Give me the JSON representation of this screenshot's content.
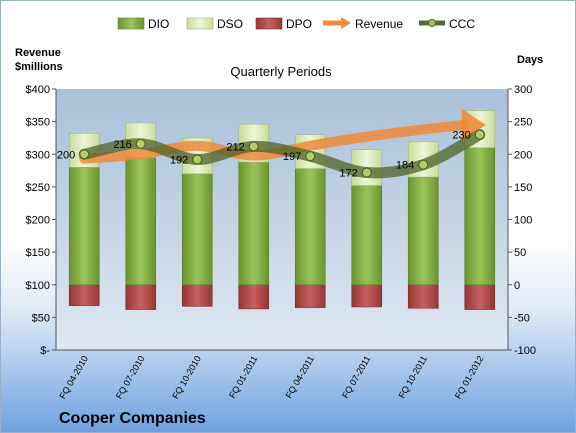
{
  "chart_data": {
    "type": "bar",
    "subtitle": "Quarterly Periods",
    "company": "Cooper Companies",
    "y_left_title_lines": [
      "Revenue",
      "$millions"
    ],
    "y_right_title": "Days",
    "categories": [
      "FQ 04-2010",
      "FQ 07-2010",
      "FQ 10-2010",
      "FQ 01-2011",
      "FQ 04-2011",
      "FQ 07-2011",
      "FQ 10-2011",
      "FQ 01-2012"
    ],
    "y_left_ticks": [
      "$400",
      "$350",
      "$300",
      "$250",
      "$200",
      "$150",
      "$100",
      "$50",
      "$-"
    ],
    "y_left_range": [
      0,
      400
    ],
    "y_right_ticks": [
      "300",
      "250",
      "200",
      "150",
      "100",
      "50",
      "0",
      "-50",
      "-100"
    ],
    "y_right_range": [
      -100,
      300
    ],
    "legend": [
      "DIO",
      "DSO",
      "DPO",
      "Revenue",
      "CCC"
    ],
    "series": [
      {
        "name": "DIO",
        "axis": "right",
        "values": [
          180,
          195,
          170,
          188,
          178,
          152,
          165,
          210
        ],
        "color": "#76a03a"
      },
      {
        "name": "DSO",
        "axis": "right",
        "values": [
          52,
          53,
          55,
          58,
          52,
          55,
          54,
          57
        ],
        "color": "#d8e8b0"
      },
      {
        "name": "DPO",
        "axis": "right",
        "values": [
          -32,
          -38,
          -33,
          -37,
          -35,
          -34,
          -36,
          -38
        ],
        "color": "#b34a4a"
      },
      {
        "name": "Revenue",
        "axis": "left",
        "values": [
          293,
          300,
          313,
          298,
          313,
          327,
          338,
          345
        ],
        "color": "#ef8a3a"
      },
      {
        "name": "CCC",
        "axis": "right",
        "values": [
          200,
          216,
          192,
          212,
          197,
          172,
          184,
          230
        ],
        "color": "#556b2f"
      }
    ],
    "ccc_labels": [
      "200",
      "216",
      "192",
      "212",
      "197",
      "172",
      "184",
      "230"
    ],
    "grid": false,
    "legend_position": "top"
  }
}
